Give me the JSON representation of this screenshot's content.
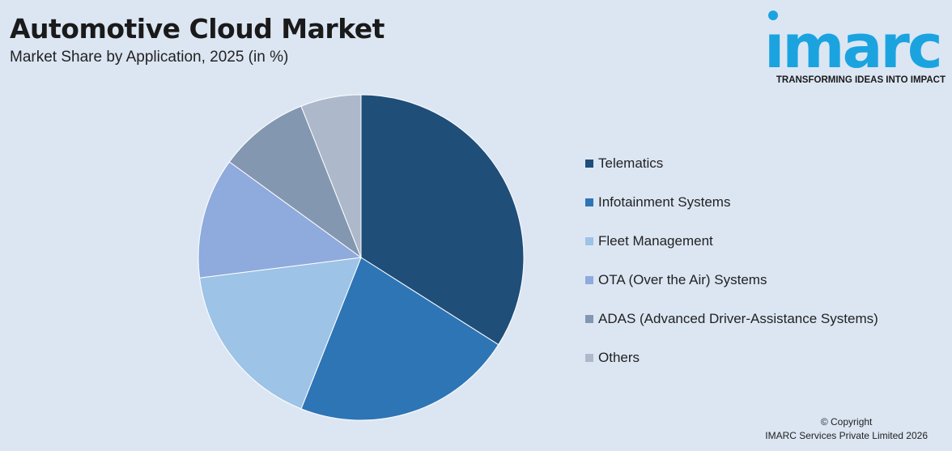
{
  "header": {
    "title": "Automotive Cloud Market",
    "subtitle": "Market Share by Application, 2025 (in %)"
  },
  "logo": {
    "word": "ımarc",
    "tagline": "TRANSFORMING IDEAS INTO IMPACT",
    "color": "#1ba3e0"
  },
  "chart_data": {
    "type": "pie",
    "title": "Automotive Cloud Market",
    "subtitle": "Market Share by Application, 2025 (in %)",
    "legend_position": "right",
    "slices": [
      {
        "label": "Telematics",
        "value": 34,
        "color": "#1f4e79"
      },
      {
        "label": "Infotainment Systems",
        "value": 22,
        "color": "#2e75b6"
      },
      {
        "label": "Fleet Management",
        "value": 17,
        "color": "#9dc3e6"
      },
      {
        "label": "OTA (Over the Air) Systems",
        "value": 12,
        "color": "#8faadc"
      },
      {
        "label": "ADAS (Advanced Driver-Assistance Systems)",
        "value": 9,
        "color": "#8497b0"
      },
      {
        "label": "Others",
        "value": 6,
        "color": "#adb9ca"
      }
    ]
  },
  "footer": {
    "copyright_line1": "© Copyright",
    "copyright_line2": "IMARC Services Private Limited 2026"
  }
}
